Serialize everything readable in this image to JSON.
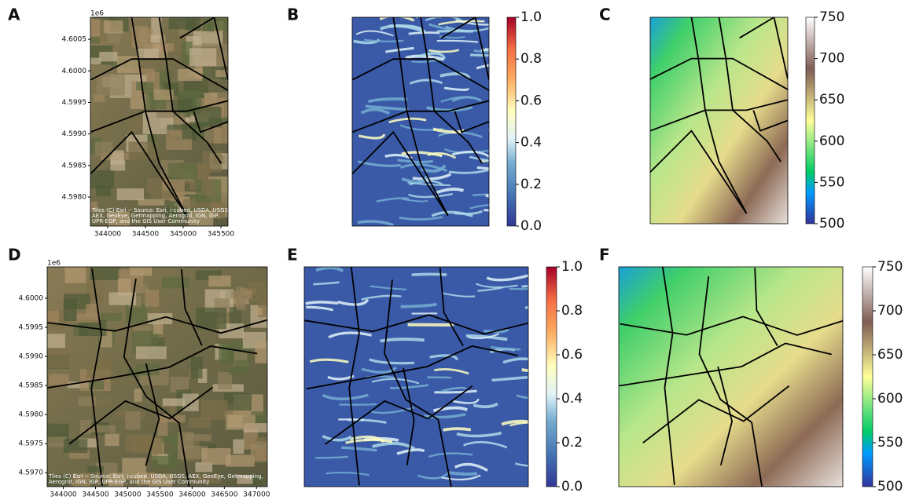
{
  "panels": [
    {
      "label": "A",
      "kind": "satellite",
      "offset_text": "1e6",
      "attribution": [
        "Tiles (C) Esri -- Source: Esri, i-cubed, USDA, USGS,",
        "AEX, GeoEye, Getmapping, Aerogrid, IGN, IGP,",
        "UPR-EGP, and the GIS User Community"
      ],
      "xlim": [
        343771,
        345594
      ],
      "ylim": [
        4.59754,
        4.60085
      ],
      "xticks": [
        344000,
        344500,
        345000,
        345500
      ],
      "yticks": [
        {
          "value": 4.598,
          "label": "4.5980"
        },
        {
          "value": 4.5985,
          "label": "4.5985"
        },
        {
          "value": 4.599,
          "label": "4.5990"
        },
        {
          "value": 4.5995,
          "label": "4.5995"
        },
        {
          "value": 4.6,
          "label": "4.6000"
        },
        {
          "value": 4.6005,
          "label": "4.6005"
        }
      ]
    },
    {
      "label": "B",
      "kind": "index",
      "colorbar": {
        "lim": [
          0,
          1
        ],
        "ticks": [
          {
            "value": 0,
            "label": "0.0"
          },
          0.2,
          0.4,
          0.6,
          0.8,
          {
            "value": 1,
            "label": "1.0"
          }
        ]
      }
    },
    {
      "label": "C",
      "kind": "elevation",
      "colorbar": {
        "lim": [
          500,
          750
        ],
        "ticks": [
          500,
          550,
          600,
          650,
          700,
          750
        ]
      }
    },
    {
      "label": "D",
      "kind": "satellite",
      "offset_text": "1e6",
      "attribution": [
        "Tiles (C) Esri -- Source: Esri, i-cubed, USDA, USGS, AEX, GeoEye, Getmapping,",
        "Aerogrid, IGN, IGP, UPR-EGP, and the GIS User Community"
      ],
      "xlim": [
        343750,
        347167
      ],
      "ylim": [
        4.59676,
        4.60054
      ],
      "xticks": [
        344000,
        344500,
        345000,
        345500,
        346000,
        346500,
        347000
      ],
      "yticks": [
        {
          "value": 4.597,
          "label": "4.5970"
        },
        {
          "value": 4.5975,
          "label": "4.5975"
        },
        {
          "value": 4.598,
          "label": "4.5980"
        },
        {
          "value": 4.5985,
          "label": "4.5985"
        },
        {
          "value": 4.599,
          "label": "4.5990"
        },
        {
          "value": 4.5995,
          "label": "4.5995"
        },
        {
          "value": 4.6,
          "label": "4.6000"
        }
      ]
    },
    {
      "label": "E",
      "kind": "index",
      "colorbar": {
        "lim": [
          0,
          1
        ],
        "ticks": [
          {
            "value": 0,
            "label": "0.0"
          },
          0.2,
          0.4,
          0.6,
          0.8,
          {
            "value": 1,
            "label": "1.0"
          }
        ]
      }
    },
    {
      "label": "F",
      "kind": "elevation",
      "colorbar": {
        "lim": [
          500,
          750
        ],
        "ticks": [
          500,
          550,
          600,
          650,
          700,
          750
        ]
      }
    }
  ]
}
